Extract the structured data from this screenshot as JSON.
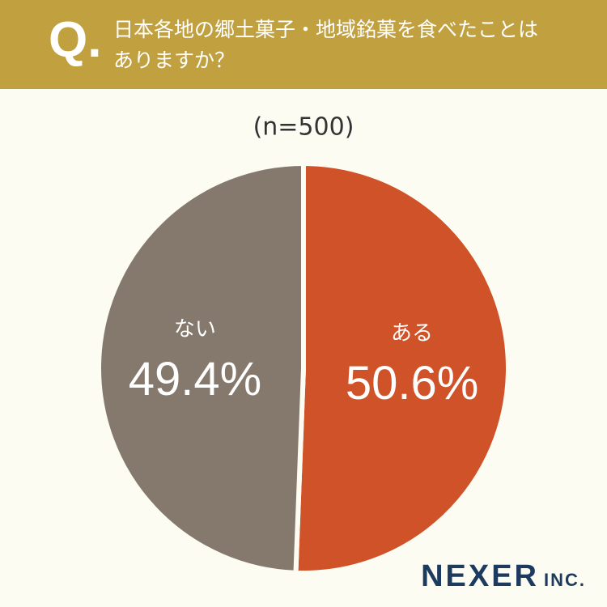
{
  "header": {
    "mark": "Q.",
    "question": "日本各地の郷土菓子・地域銘菓を食べたことはありますか？"
  },
  "chart_data": {
    "type": "pie",
    "subtitle": "(n=500)",
    "categories": [
      "ある",
      "ない"
    ],
    "values": [
      50.6,
      49.4
    ],
    "value_labels": [
      "50.6%",
      "49.4%"
    ],
    "colors": [
      "#d05228",
      "#85786c"
    ]
  },
  "logo": {
    "name": "NEXER",
    "suffix": "INC."
  }
}
